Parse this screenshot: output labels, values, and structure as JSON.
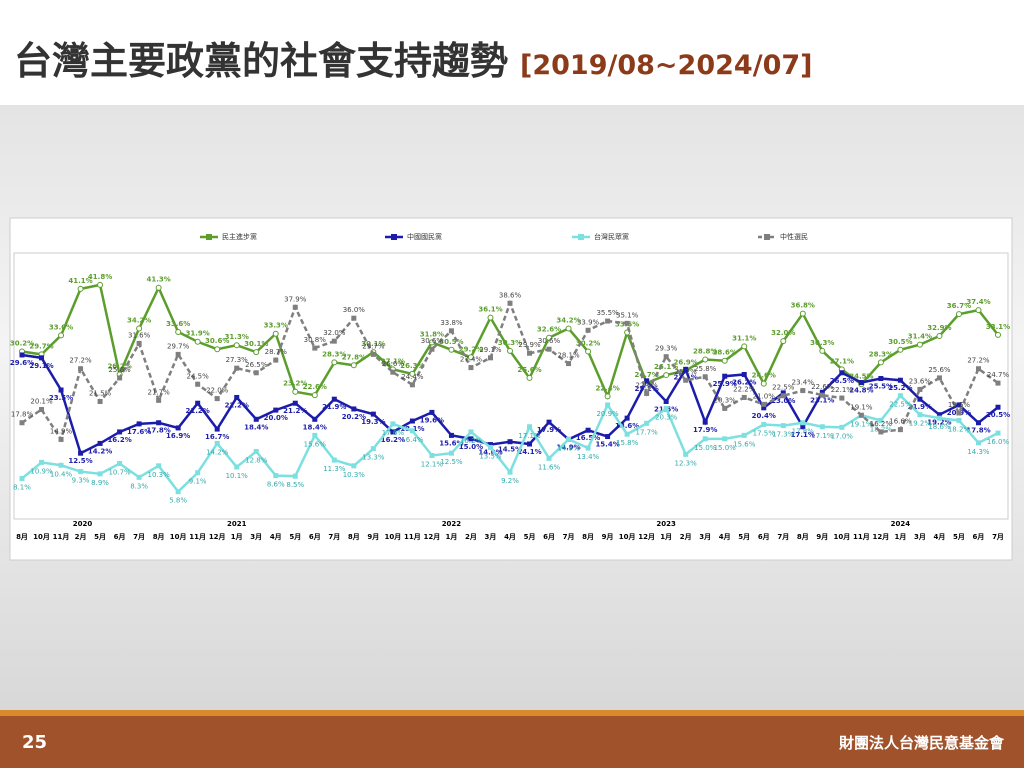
{
  "header": {
    "title": "台灣主要政黨的社會支持趨勢",
    "subtitle": "[2019/08~2024/07]"
  },
  "footer": {
    "page": "25",
    "org": "財團法人台灣民意基金會"
  },
  "chart_data": {
    "type": "line",
    "categories": [
      "8月",
      "10月",
      "11月",
      "2月",
      "5月",
      "6月",
      "7月",
      "8月",
      "10月",
      "11月",
      "12月",
      "1月",
      "3月",
      "4月",
      "5月",
      "6月",
      "7月",
      "8月",
      "9月",
      "10月",
      "11月",
      "12月",
      "1月",
      "2月",
      "3月",
      "4月",
      "5月",
      "6月",
      "7月",
      "8月",
      "9月",
      "10月",
      "12月",
      "1月",
      "2月",
      "3月",
      "4月",
      "5月",
      "6月",
      "7月",
      "8月",
      "9月",
      "10月",
      "11月",
      "12月",
      "1月",
      "3月",
      "4月",
      "5月",
      "6月",
      "7月"
    ],
    "year_labels": [
      "2020",
      "2021",
      "2022",
      "2023",
      "2024"
    ],
    "ylim": [
      0,
      47
    ],
    "series": [
      {
        "name": "民主進步黨",
        "color": "#5b9e2c",
        "values": [
          30.2,
          29.7,
          33.0,
          41.1,
          41.8,
          26.2,
          34.2,
          41.3,
          33.6,
          31.9,
          30.6,
          31.3,
          30.1,
          33.3,
          23.2,
          22.6,
          28.3,
          27.8,
          30.1,
          27.1,
          26.3,
          31.8,
          30.5,
          29.2,
          36.1,
          30.3,
          25.6,
          32.6,
          34.2,
          30.2,
          22.4,
          33.5,
          24.7,
          26.1,
          26.9,
          28.8,
          28.6,
          31.1,
          24.6,
          32.0,
          36.8,
          30.3,
          27.1,
          24.5,
          28.3,
          30.5,
          31.4,
          32.9,
          36.7,
          37.4,
          33.1
        ],
        "value_labels": [
          "30.2%",
          "29.7%",
          "33.0%",
          "41.1%",
          "41.8%",
          "26.2%",
          "34.2%",
          "41.3%",
          "33.6%",
          "31.9%",
          "30.6%",
          "31.3%",
          "30.1%",
          "33.3%",
          "23.2%",
          "22.6%",
          "28.3%",
          "27.8%",
          "30.1%",
          "27.1%",
          "26.3%",
          "31.8%",
          "30.5%",
          "29.2%",
          "36.1%",
          "30.3%",
          "25.6%",
          "32.6%",
          "34.2%",
          "30.2%",
          "22.4%",
          "33.5%",
          "24.7%",
          "26.1%",
          "26.9%",
          "28.8%",
          "28.6%",
          "31.1%",
          "24.6%",
          "32.0%",
          "36.8%",
          "30.3%",
          "27.1%",
          "24.5%",
          "28.3%",
          "30.5%",
          "31.4%",
          "32.9%",
          "36.7%",
          "37.4%",
          "33.1%"
        ]
      },
      {
        "name": "中國國民黨",
        "color": "#1c1cab",
        "values": [
          29.6,
          29.1,
          23.5,
          12.5,
          14.2,
          16.2,
          17.6,
          17.8,
          16.9,
          21.2,
          16.7,
          22.2,
          18.4,
          20.0,
          21.2,
          18.4,
          21.9,
          20.2,
          19.3,
          16.2,
          18.1,
          19.6,
          15.6,
          15.0,
          14.0,
          14.5,
          14.1,
          17.9,
          14.9,
          16.5,
          15.4,
          18.6,
          25.1,
          21.5,
          27.1,
          17.9,
          25.9,
          26.2,
          20.4,
          23.0,
          17.1,
          23.1,
          26.5,
          24.8,
          25.5,
          25.2,
          21.9,
          19.2,
          20.9,
          17.8,
          20.5
        ],
        "value_labels": [
          "29.6%",
          "29.1%",
          "23.5%",
          "12.5%",
          "14.2%",
          "16.2%",
          "17.6%",
          "17.8%",
          "16.9%",
          "21.2%",
          "16.7%",
          "22.2%",
          "18.4%",
          "20.0%",
          "21.2%",
          "18.4%",
          "21.9%",
          "20.2%",
          "19.3%",
          "16.2%",
          "18.1%",
          "19.6%",
          "15.6%",
          "15.0%",
          "14.0%",
          "14.5%",
          "14.1%",
          "17.9%",
          "14.9%",
          "16.5%",
          "15.4%",
          "18.6%",
          "25.1%",
          "21.5%",
          "27.1%",
          "17.9%",
          "25.9%",
          "26.2%",
          "20.4%",
          "23.0%",
          "17.1%",
          "23.1%",
          "26.5%",
          "24.8%",
          "25.5%",
          "25.2%",
          "21.9%",
          "19.2%",
          "20.9%",
          "17.8%",
          "20.5%"
        ]
      },
      {
        "name": "台灣民眾黨",
        "color": "#7de0e0",
        "values": [
          8.1,
          10.9,
          10.4,
          9.3,
          8.9,
          10.7,
          8.3,
          10.3,
          5.8,
          9.1,
          14.2,
          10.1,
          12.8,
          8.6,
          8.5,
          15.6,
          11.3,
          10.3,
          13.3,
          17.6,
          16.4,
          12.1,
          12.5,
          16.2,
          13.5,
          9.2,
          17.1,
          11.6,
          14.9,
          13.4,
          20.9,
          15.8,
          17.7,
          20.3,
          12.3,
          15.0,
          15.0,
          15.6,
          17.5,
          17.3,
          17.8,
          17.1,
          17.0,
          19.1,
          18.2,
          22.5,
          19.2,
          18.6,
          18.2,
          14.3,
          16.0
        ],
        "value_labels": [
          "8.1%",
          "10.9%",
          "10.4%",
          "9.3%",
          "8.9%",
          "10.7%",
          "8.3%",
          "10.3%",
          "5.8%",
          "9.1%",
          "14.2%",
          "10.1%",
          "12.8%",
          "8.6%",
          "8.5%",
          "15.6%",
          "11.3%",
          "10.3%",
          "13.3%",
          "17.6%",
          "16.4%",
          "12.1%",
          "12.5%",
          "16.2%",
          "13.5%",
          "9.2%",
          "17.1%",
          "11.6%",
          "14.9%",
          "13.4%",
          "20.9%",
          "15.8%",
          "17.7%",
          "20.3%",
          "12.3%",
          "15.0%",
          "15.0%",
          "15.6%",
          "17.5%",
          "17.3%",
          "17.8%",
          "17.1%",
          "17.0%",
          "19.1%",
          "18.2%",
          "22.5%",
          "19.2%",
          "18.6%",
          "18.2%",
          "14.3%",
          "16.0%"
        ]
      },
      {
        "name": "中性選民",
        "color": "#7f7f7f",
        "dashed": true,
        "values": [
          17.8,
          20.1,
          14.9,
          27.2,
          21.5,
          25.6,
          31.6,
          21.7,
          29.7,
          24.5,
          22.0,
          27.3,
          26.5,
          28.7,
          37.9,
          30.8,
          32.0,
          36.0,
          29.7,
          26.6,
          24.4,
          30.6,
          33.8,
          27.4,
          29.1,
          38.6,
          29.9,
          30.6,
          28.1,
          33.9,
          35.5,
          35.1,
          22.9,
          29.3,
          25.2,
          25.8,
          20.3,
          22.2,
          21.0,
          22.5,
          23.4,
          22.6,
          22.1,
          19.1,
          16.2,
          16.6,
          23.6,
          25.6,
          19.5,
          27.2,
          24.7
        ],
        "value_labels": [
          "17.8%",
          "20.1%",
          "14.9%",
          "27.2%",
          "21.5%",
          "25.6%",
          "31.6%",
          "21.7%",
          "29.7%",
          "24.5%",
          "22.0%",
          "27.3%",
          "26.5%",
          "28.7%",
          "37.9%",
          "30.8%",
          "32.0%",
          "36.0%",
          "29.7%",
          "26.6%",
          "24.4%",
          "30.6%",
          "33.8%",
          "27.4%",
          "29.1%",
          "38.6%",
          "29.9%",
          "30.6%",
          "28.1%",
          "33.9%",
          "35.5%",
          "35.1%",
          "22.9%",
          "29.3%",
          "25.2%",
          "25.8%",
          "20.3%",
          "22.2%",
          "21.0%",
          "22.5%",
          "23.4%",
          "22.6%",
          "22.1%",
          "19.1%",
          "16.2%",
          "16.6%",
          "23.6%",
          "25.6%",
          "19.5%",
          "27.2%",
          "24.7%"
        ]
      }
    ]
  }
}
